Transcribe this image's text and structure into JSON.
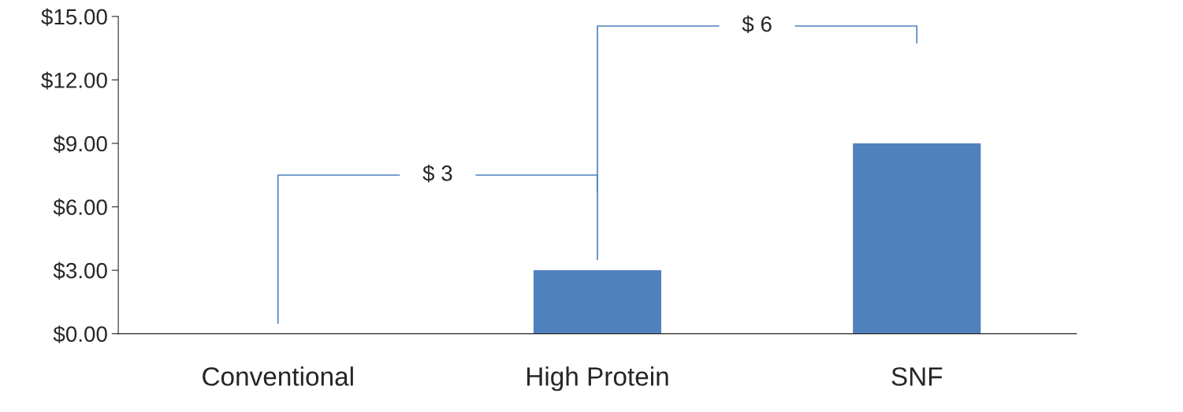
{
  "chart_data": {
    "type": "bar",
    "categories": [
      "Conventional",
      "High Protein",
      "SNF"
    ],
    "values": [
      0,
      3,
      9
    ],
    "color": "#4f81bd",
    "ylim": [
      0,
      15
    ],
    "yticks": [
      {
        "value": 0,
        "label": "$0.00"
      },
      {
        "value": 3,
        "label": "$3.00"
      },
      {
        "value": 6,
        "label": "$6.00"
      },
      {
        "value": 9,
        "label": "$9.00"
      },
      {
        "value": 12,
        "label": "$12.00"
      },
      {
        "value": 15,
        "label": "$15.00"
      }
    ],
    "grid": false,
    "annotations": [
      "$ 3",
      "$ 6"
    ]
  }
}
